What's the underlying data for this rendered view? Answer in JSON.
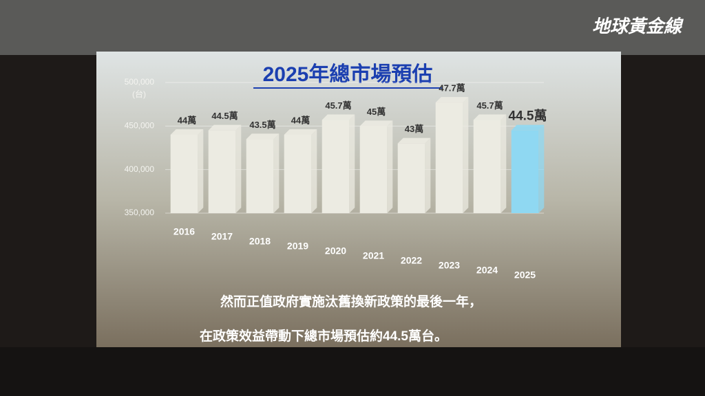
{
  "chart_data": {
    "type": "bar",
    "title": "2025年總市場預估",
    "y_unit": "(台)",
    "categories": [
      "2016",
      "2017",
      "2018",
      "2019",
      "2020",
      "2021",
      "2022",
      "2023",
      "2024",
      "2025"
    ],
    "values": [
      440000,
      445000,
      435000,
      440000,
      457000,
      450000,
      430000,
      477000,
      457000,
      445000
    ],
    "value_labels": [
      "44萬",
      "44.5萬",
      "43.5萬",
      "44萬",
      "45.7萬",
      "45萬",
      "43萬",
      "47.7萬",
      "45.7萬",
      "44.5萬"
    ],
    "colors": [
      "#ecebe2",
      "#ecebe2",
      "#ecebe2",
      "#ecebe2",
      "#ecebe2",
      "#ecebe2",
      "#ecebe2",
      "#ecebe2",
      "#ecebe2",
      "#8fd8f2"
    ],
    "label_colors": [
      "#333333",
      "#333333",
      "#333333",
      "#333333",
      "#333333",
      "#333333",
      "#333333",
      "#333333",
      "#333333",
      "#1a6fd0"
    ],
    "ylim": [
      350000,
      500000
    ],
    "yticks": [
      {
        "value": 350000,
        "label": "350,000"
      },
      {
        "value": 400000,
        "label": "400,000"
      },
      {
        "value": 450000,
        "label": "450,000"
      },
      {
        "value": 500000,
        "label": "500,000"
      }
    ],
    "grid": true,
    "caption": [
      "然而正值政府實施汰舊換新政策的最後一年，",
      "在政策效益帶動下總市場預估約44.5萬台。"
    ],
    "watermark": "地球黃金線"
  }
}
